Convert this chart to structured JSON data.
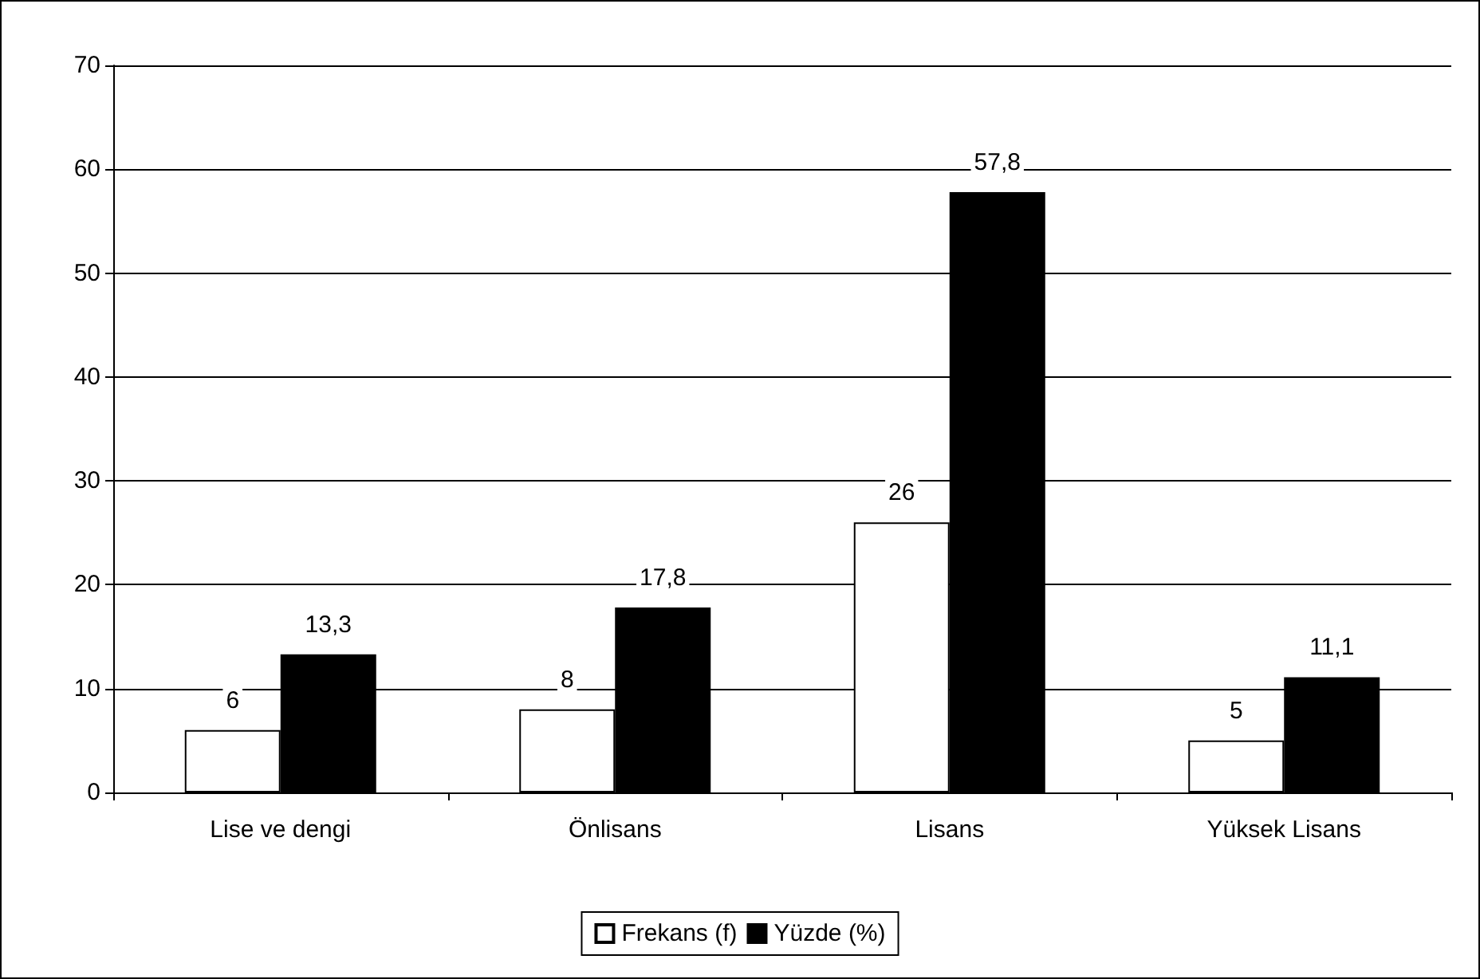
{
  "chart_data": {
    "type": "bar",
    "categories": [
      "Lise ve dengi",
      "Önlisans",
      "Lisans",
      "Yüksek Lisans"
    ],
    "series": [
      {
        "name": "Frekans (f)",
        "color": "#ffffff",
        "values": [
          6,
          8,
          26,
          5
        ],
        "value_labels": [
          "6",
          "8",
          "26",
          "5"
        ]
      },
      {
        "name": "Yüzde (%)",
        "color": "#000000",
        "values": [
          13.3,
          17.8,
          57.8,
          11.1
        ],
        "value_labels": [
          "13,3",
          "17,8",
          "57,8",
          "11,1"
        ]
      }
    ],
    "ylim": [
      0,
      70
    ],
    "yticks": [
      0,
      10,
      20,
      30,
      40,
      50,
      60,
      70
    ],
    "grid": "y",
    "legend": "bottom"
  }
}
